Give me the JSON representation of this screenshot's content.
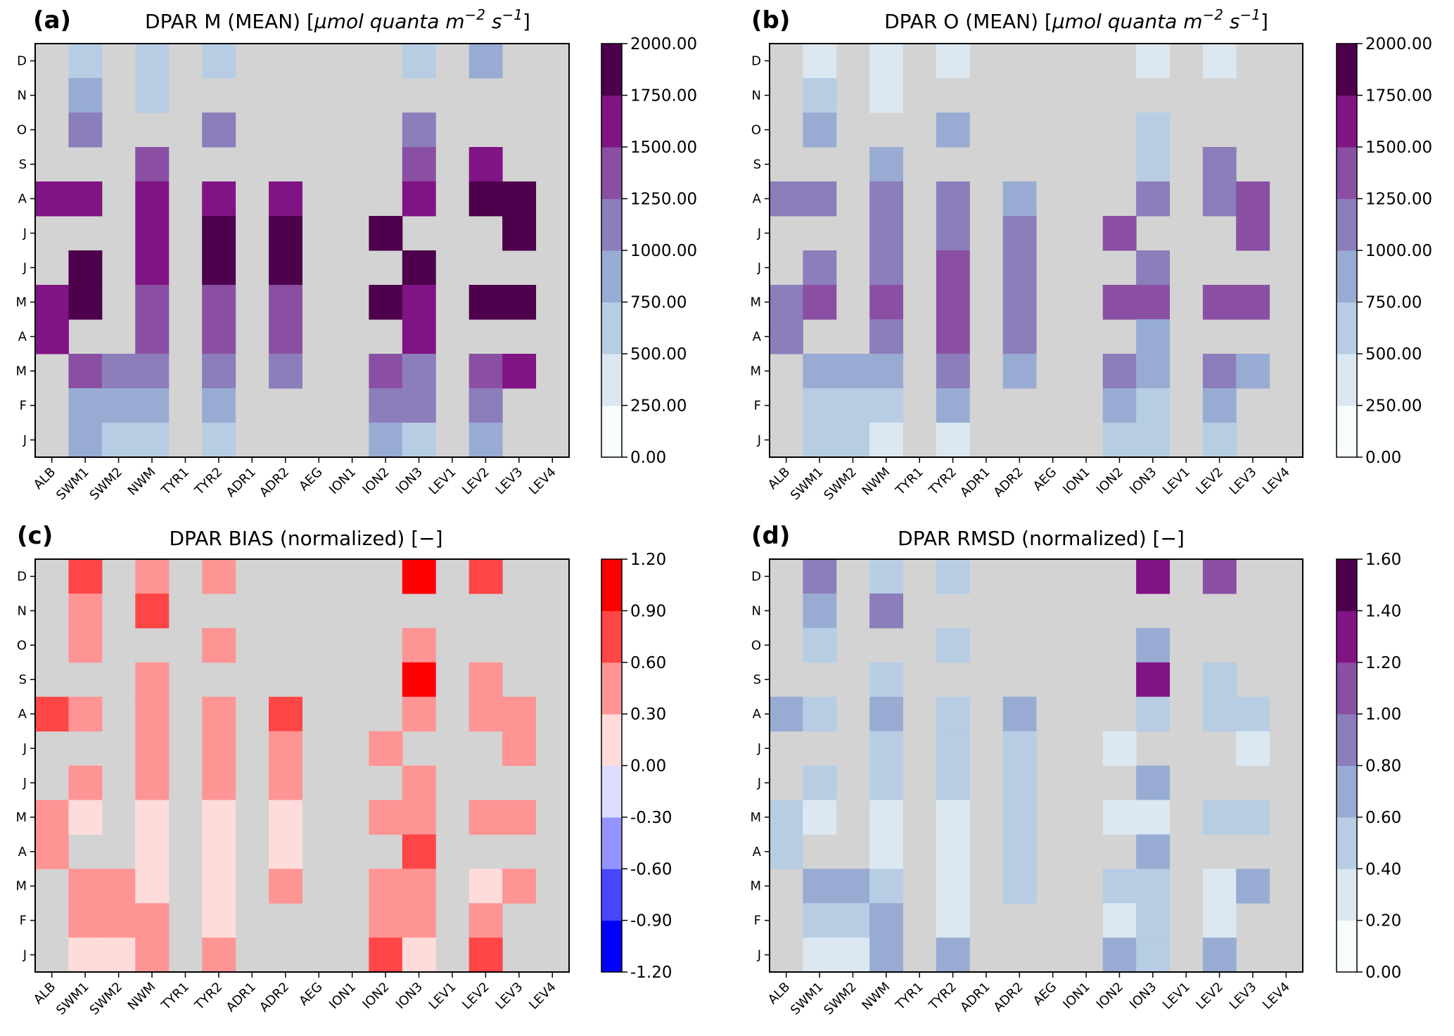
{
  "chart_data": [
    {
      "type": "heatmap",
      "panel_label": "(a)",
      "title_prefix": "DPAR M (MEAN) [",
      "title_units_italic": "μmol quanta m",
      "title_sup1": "−2",
      "title_mid": " s",
      "title_sup2": "−1",
      "title_suffix": "]",
      "x_categories": [
        "ALB",
        "SWM1",
        "SWM2",
        "NWM",
        "TYR1",
        "TYR2",
        "ADR1",
        "ADR2",
        "AEG",
        "ION1",
        "ION2",
        "ION3",
        "LEV1",
        "LEV2",
        "LEV3",
        "LEV4"
      ],
      "y_categories_top_to_bottom": [
        "D",
        "N",
        "O",
        "S",
        "A",
        "J",
        "J",
        "M",
        "A",
        "M",
        "F",
        "J"
      ],
      "colormap": "BuPu",
      "colorbar_levels": [
        0,
        250,
        500,
        750,
        1000,
        1250,
        1500,
        1750,
        2000
      ],
      "colorbar_tick_labels": [
        "0.00",
        "250.00",
        "500.00",
        "750.00",
        "1000.00",
        "1250.00",
        "1500.00",
        "1750.00",
        "2000.00"
      ],
      "value_units": "colorbar bin index (0 = lowest bin); null = no data",
      "bins": [
        [
          null,
          2,
          null,
          2,
          null,
          2,
          null,
          null,
          null,
          null,
          null,
          2,
          null,
          3,
          null,
          null
        ],
        [
          null,
          3,
          null,
          2,
          null,
          null,
          null,
          null,
          null,
          null,
          null,
          null,
          null,
          null,
          null,
          null
        ],
        [
          null,
          4,
          null,
          null,
          null,
          4,
          null,
          null,
          null,
          null,
          null,
          4,
          null,
          null,
          null,
          null
        ],
        [
          null,
          null,
          null,
          5,
          null,
          null,
          null,
          null,
          null,
          null,
          null,
          5,
          null,
          6,
          null,
          null
        ],
        [
          6,
          6,
          null,
          6,
          null,
          6,
          null,
          6,
          null,
          null,
          null,
          6,
          null,
          7,
          7,
          null
        ],
        [
          null,
          null,
          null,
          6,
          null,
          7,
          null,
          7,
          null,
          null,
          7,
          null,
          null,
          null,
          7,
          null
        ],
        [
          null,
          7,
          null,
          6,
          null,
          7,
          null,
          7,
          null,
          null,
          null,
          7,
          null,
          null,
          null,
          null
        ],
        [
          6,
          7,
          null,
          5,
          null,
          5,
          null,
          5,
          null,
          null,
          7,
          6,
          null,
          7,
          7,
          null
        ],
        [
          6,
          null,
          null,
          5,
          null,
          5,
          null,
          5,
          null,
          null,
          null,
          6,
          null,
          null,
          null,
          null
        ],
        [
          null,
          5,
          4,
          4,
          null,
          4,
          null,
          4,
          null,
          null,
          5,
          4,
          null,
          5,
          6,
          null
        ],
        [
          null,
          3,
          3,
          3,
          null,
          3,
          null,
          null,
          null,
          null,
          4,
          4,
          null,
          4,
          null,
          null
        ],
        [
          null,
          3,
          2,
          2,
          null,
          2,
          null,
          null,
          null,
          null,
          3,
          2,
          null,
          3,
          null,
          null
        ]
      ]
    },
    {
      "type": "heatmap",
      "panel_label": "(b)",
      "title_prefix": "DPAR O (MEAN) [",
      "title_units_italic": "μmol quanta m",
      "title_sup1": "−2",
      "title_mid": " s",
      "title_sup2": "−1",
      "title_suffix": "]",
      "x_categories": [
        "ALB",
        "SWM1",
        "SWM2",
        "NWM",
        "TYR1",
        "TYR2",
        "ADR1",
        "ADR2",
        "AEG",
        "ION1",
        "ION2",
        "ION3",
        "LEV1",
        "LEV2",
        "LEV3",
        "LEV4"
      ],
      "y_categories_top_to_bottom": [
        "D",
        "N",
        "O",
        "S",
        "A",
        "J",
        "J",
        "M",
        "A",
        "M",
        "F",
        "J"
      ],
      "colormap": "BuPu",
      "colorbar_levels": [
        0,
        250,
        500,
        750,
        1000,
        1250,
        1500,
        1750,
        2000
      ],
      "colorbar_tick_labels": [
        "0.00",
        "250.00",
        "500.00",
        "750.00",
        "1000.00",
        "1250.00",
        "1500.00",
        "1750.00",
        "2000.00"
      ],
      "value_units": "colorbar bin index (0 = lowest bin); null = no data",
      "bins": [
        [
          null,
          1,
          null,
          1,
          null,
          1,
          null,
          null,
          null,
          null,
          null,
          1,
          null,
          1,
          null,
          null
        ],
        [
          null,
          2,
          null,
          1,
          null,
          null,
          null,
          null,
          null,
          null,
          null,
          null,
          null,
          null,
          null,
          null
        ],
        [
          null,
          3,
          null,
          null,
          null,
          3,
          null,
          null,
          null,
          null,
          null,
          2,
          null,
          null,
          null,
          null
        ],
        [
          null,
          null,
          null,
          3,
          null,
          null,
          null,
          null,
          null,
          null,
          null,
          2,
          null,
          4,
          null,
          null
        ],
        [
          4,
          4,
          null,
          4,
          null,
          4,
          null,
          3,
          null,
          null,
          null,
          4,
          null,
          4,
          5,
          null
        ],
        [
          null,
          null,
          null,
          4,
          null,
          4,
          null,
          4,
          null,
          null,
          5,
          null,
          null,
          null,
          5,
          null
        ],
        [
          null,
          4,
          null,
          4,
          null,
          5,
          null,
          4,
          null,
          null,
          null,
          4,
          null,
          null,
          null,
          null
        ],
        [
          4,
          5,
          null,
          5,
          null,
          5,
          null,
          4,
          null,
          null,
          5,
          5,
          null,
          5,
          5,
          null
        ],
        [
          4,
          null,
          null,
          4,
          null,
          5,
          null,
          4,
          null,
          null,
          null,
          3,
          null,
          null,
          null,
          null
        ],
        [
          null,
          3,
          3,
          3,
          null,
          4,
          null,
          3,
          null,
          null,
          4,
          3,
          null,
          4,
          3,
          null
        ],
        [
          null,
          2,
          2,
          2,
          null,
          3,
          null,
          null,
          null,
          null,
          3,
          2,
          null,
          3,
          null,
          null
        ],
        [
          null,
          2,
          2,
          1,
          null,
          1,
          null,
          null,
          null,
          null,
          2,
          2,
          null,
          2,
          null,
          null
        ]
      ]
    },
    {
      "type": "heatmap",
      "panel_label": "(c)",
      "title": "DPAR BIAS (normalized) [−]",
      "x_categories": [
        "ALB",
        "SWM1",
        "SWM2",
        "NWM",
        "TYR1",
        "TYR2",
        "ADR1",
        "ADR2",
        "AEG",
        "ION1",
        "ION2",
        "ION3",
        "LEV1",
        "LEV2",
        "LEV3",
        "LEV4"
      ],
      "y_categories_top_to_bottom": [
        "D",
        "N",
        "O",
        "S",
        "A",
        "J",
        "J",
        "M",
        "A",
        "M",
        "F",
        "J"
      ],
      "colormap": "bwr",
      "colorbar_levels": [
        -1.2,
        -0.9,
        -0.6,
        -0.3,
        0.0,
        0.3,
        0.6,
        0.9,
        1.2
      ],
      "colorbar_tick_labels": [
        "-1.20",
        "-0.90",
        "-0.60",
        "-0.30",
        "0.00",
        "0.30",
        "0.60",
        "0.90",
        "1.20"
      ],
      "value_units": "colorbar bin index (0 = lowest bin); null = no data",
      "bins": [
        [
          null,
          6,
          null,
          5,
          null,
          5,
          null,
          null,
          null,
          null,
          null,
          7,
          null,
          6,
          null,
          null
        ],
        [
          null,
          5,
          null,
          6,
          null,
          null,
          null,
          null,
          null,
          null,
          null,
          null,
          null,
          null,
          null,
          null
        ],
        [
          null,
          5,
          null,
          null,
          null,
          5,
          null,
          null,
          null,
          null,
          null,
          5,
          null,
          null,
          null,
          null
        ],
        [
          null,
          null,
          null,
          5,
          null,
          null,
          null,
          null,
          null,
          null,
          null,
          7,
          null,
          5,
          null,
          null
        ],
        [
          6,
          5,
          null,
          5,
          null,
          5,
          null,
          6,
          null,
          null,
          null,
          5,
          null,
          5,
          5,
          null
        ],
        [
          null,
          null,
          null,
          5,
          null,
          5,
          null,
          5,
          null,
          null,
          5,
          null,
          null,
          null,
          5,
          null
        ],
        [
          null,
          5,
          null,
          5,
          null,
          5,
          null,
          5,
          null,
          null,
          null,
          5,
          null,
          null,
          null,
          null
        ],
        [
          5,
          4,
          null,
          4,
          null,
          4,
          null,
          4,
          null,
          null,
          5,
          5,
          null,
          5,
          5,
          null
        ],
        [
          5,
          null,
          null,
          4,
          null,
          4,
          null,
          4,
          null,
          null,
          null,
          6,
          null,
          null,
          null,
          null
        ],
        [
          null,
          5,
          5,
          4,
          null,
          4,
          null,
          5,
          null,
          null,
          5,
          5,
          null,
          4,
          5,
          null
        ],
        [
          null,
          5,
          5,
          5,
          null,
          4,
          null,
          null,
          null,
          null,
          5,
          5,
          null,
          5,
          null,
          null
        ],
        [
          null,
          4,
          4,
          5,
          null,
          5,
          null,
          null,
          null,
          null,
          6,
          4,
          null,
          6,
          null,
          null
        ]
      ]
    },
    {
      "type": "heatmap",
      "panel_label": "(d)",
      "title": "DPAR RMSD (normalized) [−]",
      "x_categories": [
        "ALB",
        "SWM1",
        "SWM2",
        "NWM",
        "TYR1",
        "TYR2",
        "ADR1",
        "ADR2",
        "AEG",
        "ION1",
        "ION2",
        "ION3",
        "LEV1",
        "LEV2",
        "LEV3",
        "LEV4"
      ],
      "y_categories_top_to_bottom": [
        "D",
        "N",
        "O",
        "S",
        "A",
        "J",
        "J",
        "M",
        "A",
        "M",
        "F",
        "J"
      ],
      "colormap": "BuPu",
      "colorbar_levels": [
        0.0,
        0.2,
        0.4,
        0.6,
        0.8,
        1.0,
        1.2,
        1.4,
        1.6
      ],
      "colorbar_tick_labels": [
        "0.00",
        "0.20",
        "0.40",
        "0.60",
        "0.80",
        "1.00",
        "1.20",
        "1.40",
        "1.60"
      ],
      "value_units": "colorbar bin index (0 = lowest bin); null = no data",
      "bins": [
        [
          null,
          4,
          null,
          2,
          null,
          2,
          null,
          null,
          null,
          null,
          null,
          6,
          null,
          5,
          null,
          null
        ],
        [
          null,
          3,
          null,
          4,
          null,
          null,
          null,
          null,
          null,
          null,
          null,
          null,
          null,
          null,
          null,
          null
        ],
        [
          null,
          2,
          null,
          null,
          null,
          2,
          null,
          null,
          null,
          null,
          null,
          3,
          null,
          null,
          null,
          null
        ],
        [
          null,
          null,
          null,
          2,
          null,
          null,
          null,
          null,
          null,
          null,
          null,
          6,
          null,
          2,
          null,
          null
        ],
        [
          3,
          2,
          null,
          3,
          null,
          2,
          null,
          3,
          null,
          null,
          null,
          2,
          null,
          2,
          2,
          null
        ],
        [
          null,
          null,
          null,
          2,
          null,
          2,
          null,
          2,
          null,
          null,
          1,
          null,
          null,
          null,
          1,
          null
        ],
        [
          null,
          2,
          null,
          2,
          null,
          2,
          null,
          2,
          null,
          null,
          null,
          3,
          null,
          null,
          null,
          null
        ],
        [
          2,
          1,
          null,
          1,
          null,
          1,
          null,
          2,
          null,
          null,
          1,
          1,
          null,
          2,
          2,
          null
        ],
        [
          2,
          null,
          null,
          1,
          null,
          1,
          null,
          2,
          null,
          null,
          null,
          3,
          null,
          null,
          null,
          null
        ],
        [
          null,
          3,
          3,
          2,
          null,
          1,
          null,
          2,
          null,
          null,
          2,
          2,
          null,
          1,
          3,
          null
        ],
        [
          null,
          2,
          2,
          3,
          null,
          1,
          null,
          null,
          null,
          null,
          1,
          2,
          null,
          1,
          null,
          null
        ],
        [
          null,
          1,
          1,
          3,
          null,
          3,
          null,
          null,
          null,
          null,
          3,
          2,
          null,
          3,
          null,
          null
        ]
      ]
    }
  ],
  "colors": {
    "missing": "#d3d3d3",
    "BuPu": [
      "#f7fcfd",
      "#dbe8f2",
      "#b7cde4",
      "#98acd3",
      "#8c7dbb",
      "#8a4fa3",
      "#811484",
      "#4d004b"
    ],
    "bwr": [
      "#0000ff",
      "#4646ff",
      "#9494ff",
      "#dcdcff",
      "#ffdcdc",
      "#ff9494",
      "#ff4646",
      "#ff0000"
    ]
  }
}
